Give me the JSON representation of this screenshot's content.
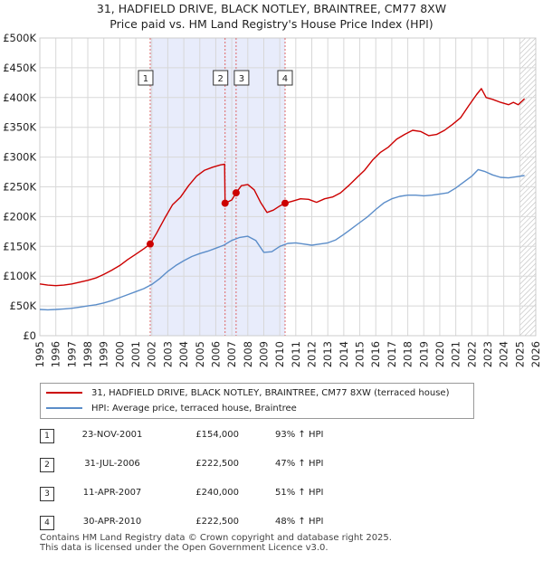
{
  "header": {
    "title": "31, HADFIELD DRIVE, BLACK NOTLEY, BRAINTREE, CM77 8XW",
    "subtitle": "Price paid vs. HM Land Registry's House Price Index (HPI)"
  },
  "colors": {
    "property_line": "#cc0000",
    "hpi_line": "#5b8dc9",
    "shade": "#e8ecfb",
    "grid": "#d8d8d8"
  },
  "chart_data": {
    "type": "line",
    "title": "31, HADFIELD DRIVE, BLACK NOTLEY, BRAINTREE, CM77 8XW",
    "xlim": [
      1995,
      2026
    ],
    "ylim": [
      0,
      500000
    ],
    "x_ticks": [
      "1995",
      "1996",
      "1997",
      "1998",
      "1999",
      "2000",
      "2001",
      "2002",
      "2003",
      "2004",
      "2005",
      "2006",
      "2007",
      "2008",
      "2009",
      "2010",
      "2011",
      "2012",
      "2013",
      "2014",
      "2015",
      "2016",
      "2017",
      "2018",
      "2019",
      "2020",
      "2021",
      "2022",
      "2023",
      "2024",
      "2025",
      "2026"
    ],
    "y_ticks": [
      {
        "value": 0,
        "label": "£0"
      },
      {
        "value": 50000,
        "label": "£50K"
      },
      {
        "value": 100000,
        "label": "£100K"
      },
      {
        "value": 150000,
        "label": "£150K"
      },
      {
        "value": 200000,
        "label": "£200K"
      },
      {
        "value": 250000,
        "label": "£250K"
      },
      {
        "value": 300000,
        "label": "£300K"
      },
      {
        "value": 350000,
        "label": "£350K"
      },
      {
        "value": 400000,
        "label": "£400K"
      },
      {
        "value": 450000,
        "label": "£450K"
      },
      {
        "value": 500000,
        "label": "£500K"
      }
    ],
    "shaded_range": [
      2001.9,
      2010.33
    ],
    "hatch_from": 2025.0,
    "series": [
      {
        "name": "31, HADFIELD DRIVE, BLACK NOTLEY, BRAINTREE, CM77 8XW (terraced house)",
        "x": [
          1995,
          1995.5,
          1996,
          1996.5,
          1997,
          1997.5,
          1998,
          1998.5,
          1999,
          1999.5,
          2000,
          2000.5,
          2001,
          2001.5,
          2001.9,
          2002.3,
          2002.8,
          2003.3,
          2003.8,
          2004.3,
          2004.8,
          2005.3,
          2005.8,
          2006.3,
          2006.55,
          2006.58,
          2007.0,
          2007.27,
          2007.6,
          2008.0,
          2008.4,
          2008.8,
          2009.2,
          2009.6,
          2010.0,
          2010.33,
          2010.8,
          2011.3,
          2011.8,
          2012.3,
          2012.8,
          2013.3,
          2013.8,
          2014.3,
          2014.8,
          2015.3,
          2015.8,
          2016.3,
          2016.8,
          2017.3,
          2017.8,
          2018.3,
          2018.8,
          2019.3,
          2019.8,
          2020.3,
          2020.8,
          2021.3,
          2021.8,
          2022.3,
          2022.6,
          2022.9,
          2023.3,
          2023.8,
          2024.3,
          2024.6,
          2024.9,
          2025.3
        ],
        "values": [
          87000,
          85000,
          84000,
          85000,
          87000,
          90000,
          93000,
          97000,
          103000,
          110000,
          118000,
          128000,
          137000,
          146000,
          154000,
          172000,
          197000,
          220000,
          233000,
          252000,
          268000,
          278000,
          283000,
          287000,
          288000,
          222500,
          228000,
          240000,
          252000,
          254000,
          245000,
          224000,
          207000,
          211000,
          218000,
          222500,
          226000,
          230000,
          229000,
          224000,
          230000,
          233000,
          240000,
          252000,
          265000,
          278000,
          295000,
          308000,
          317000,
          330000,
          338000,
          345000,
          343000,
          336000,
          338000,
          345000,
          355000,
          366000,
          386000,
          405000,
          415000,
          400000,
          397000,
          392000,
          388000,
          392000,
          388000,
          398000
        ]
      },
      {
        "name": "HPI: Average price, terraced house, Braintree",
        "x": [
          1995,
          1995.5,
          1996,
          1996.5,
          1997,
          1997.5,
          1998,
          1998.5,
          1999,
          1999.5,
          2000,
          2000.5,
          2001,
          2001.5,
          2002,
          2002.5,
          2003,
          2003.5,
          2004,
          2004.5,
          2005,
          2005.5,
          2006,
          2006.5,
          2007,
          2007.5,
          2008,
          2008.5,
          2009,
          2009.5,
          2010,
          2010.5,
          2011,
          2011.5,
          2012,
          2012.5,
          2013,
          2013.5,
          2014,
          2014.5,
          2015,
          2015.5,
          2016,
          2016.5,
          2017,
          2017.5,
          2018,
          2018.5,
          2019,
          2019.5,
          2020,
          2020.5,
          2021,
          2021.5,
          2022,
          2022.4,
          2022.8,
          2023.3,
          2023.8,
          2024.3,
          2024.8,
          2025.3
        ],
        "values": [
          44000,
          43500,
          44000,
          45000,
          46000,
          48000,
          50000,
          52000,
          55000,
          59000,
          64000,
          69000,
          74000,
          79000,
          86000,
          96000,
          108000,
          118000,
          126000,
          133000,
          138000,
          142000,
          147000,
          152000,
          160000,
          165000,
          167000,
          160000,
          140000,
          141000,
          150000,
          155000,
          156000,
          154000,
          152000,
          154000,
          156000,
          161000,
          170000,
          180000,
          190000,
          200000,
          212000,
          223000,
          230000,
          234000,
          236000,
          236000,
          235000,
          236000,
          238000,
          240000,
          248000,
          258000,
          268000,
          279000,
          276000,
          270000,
          266000,
          265000,
          267000,
          269000
        ]
      }
    ],
    "sales": [
      {
        "num": "1",
        "x": 2001.9,
        "value": 154000,
        "date": "23-NOV-2001",
        "price": "£154,000",
        "hpi": "93% ↑ HPI"
      },
      {
        "num": "2",
        "x": 2006.58,
        "value": 222500,
        "date": "31-JUL-2006",
        "price": "£222,500",
        "hpi": "47% ↑ HPI"
      },
      {
        "num": "3",
        "x": 2007.27,
        "value": 240000,
        "date": "11-APR-2007",
        "price": "£240,000",
        "hpi": "51% ↑ HPI"
      },
      {
        "num": "4",
        "x": 2010.33,
        "value": 222500,
        "date": "30-APR-2010",
        "price": "£222,500",
        "hpi": "48% ↑ HPI"
      }
    ]
  },
  "legend": {
    "property": "31, HADFIELD DRIVE, BLACK NOTLEY, BRAINTREE, CM77 8XW (terraced house)",
    "hpi": "HPI: Average price, terraced house, Braintree"
  },
  "footer": {
    "line1": "Contains HM Land Registry data © Crown copyright and database right 2025.",
    "line2": "This data is licensed under the Open Government Licence v3.0."
  }
}
